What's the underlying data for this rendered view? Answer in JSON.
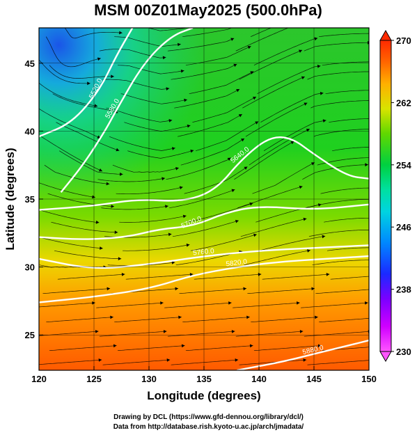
{
  "chart_data": {
    "type": "heatmap",
    "title": "MSM 00Z01May2025 (500.0hPa)",
    "xlabel": "Longitude (degrees)",
    "ylabel": "Latitude  (degrees)",
    "xlim": [
      120,
      150
    ],
    "ylim": [
      22.4,
      47.6
    ],
    "x_ticks": [
      120,
      125,
      130,
      135,
      140,
      145,
      150
    ],
    "y_ticks": [
      25,
      30,
      35,
      40,
      45
    ],
    "colorbar": {
      "ticks": [
        230,
        238,
        246,
        254,
        262,
        270
      ],
      "range": [
        230,
        270
      ],
      "colors": [
        "#ff55ff",
        "#d000ff",
        "#7a00ff",
        "#2050ff",
        "#00a8ff",
        "#00e0c0",
        "#00d060",
        "#30d000",
        "#9ae000",
        "#e6e600",
        "#ffb000",
        "#ff6600",
        "#ff2a00"
      ]
    },
    "contours": [
      {
        "label": "5520.0",
        "points": [
          [
            120,
            39.6
          ],
          [
            123,
            40.6
          ],
          [
            125.5,
            43
          ],
          [
            127,
            45.5
          ],
          [
            128.5,
            47.6
          ]
        ]
      },
      {
        "label": "5580.0",
        "points": [
          [
            122,
            35.5
          ],
          [
            124,
            37.5
          ],
          [
            126,
            40
          ],
          [
            127,
            41.5
          ],
          [
            129.5,
            45
          ],
          [
            132,
            47
          ],
          [
            134,
            47.6
          ]
        ]
      },
      {
        "label": "5640.0",
        "points": [
          [
            120,
            34.2
          ],
          [
            125,
            34.5
          ],
          [
            129,
            35
          ],
          [
            133,
            34.8
          ],
          [
            136,
            35.6
          ],
          [
            138.5,
            38
          ],
          [
            141,
            39.6
          ],
          [
            143,
            39.5
          ],
          [
            145,
            38.3
          ],
          [
            148,
            36.7
          ],
          [
            150,
            36.5
          ]
        ]
      },
      {
        "label": "5700.0",
        "points": [
          [
            120,
            32.2
          ],
          [
            124,
            32
          ],
          [
            128,
            32.2
          ],
          [
            131,
            32.8
          ],
          [
            134,
            33
          ],
          [
            137,
            34
          ],
          [
            140,
            34.5
          ],
          [
            145,
            34.2
          ],
          [
            150,
            34.6
          ]
        ]
      },
      {
        "label": "5760.0",
        "points": [
          [
            120,
            30.6
          ],
          [
            125,
            29.8
          ],
          [
            130,
            30.2
          ],
          [
            135,
            30.8
          ],
          [
            140,
            31.2
          ],
          [
            145,
            31.4
          ],
          [
            150,
            31.6
          ]
        ]
      },
      {
        "label": "5820.0",
        "points": [
          [
            120,
            27.4
          ],
          [
            125,
            27.8
          ],
          [
            130,
            28.4
          ],
          [
            134,
            29.4
          ],
          [
            138,
            30
          ],
          [
            142,
            30.4
          ],
          [
            146,
            30.6
          ],
          [
            150,
            30.8
          ]
        ]
      },
      {
        "label": "5880.0",
        "points": [
          [
            138,
            22.4
          ],
          [
            142,
            23
          ],
          [
            145,
            23.6
          ],
          [
            148,
            24.2
          ],
          [
            150,
            24.6
          ]
        ]
      }
    ]
  },
  "credits": {
    "line1": "Drawing by DCL (https://www.gfd-dennou.org/library/dcl/)",
    "line2": "Data from http://database.rish.kyoto-u.ac.jp/arch/jmadata/"
  }
}
